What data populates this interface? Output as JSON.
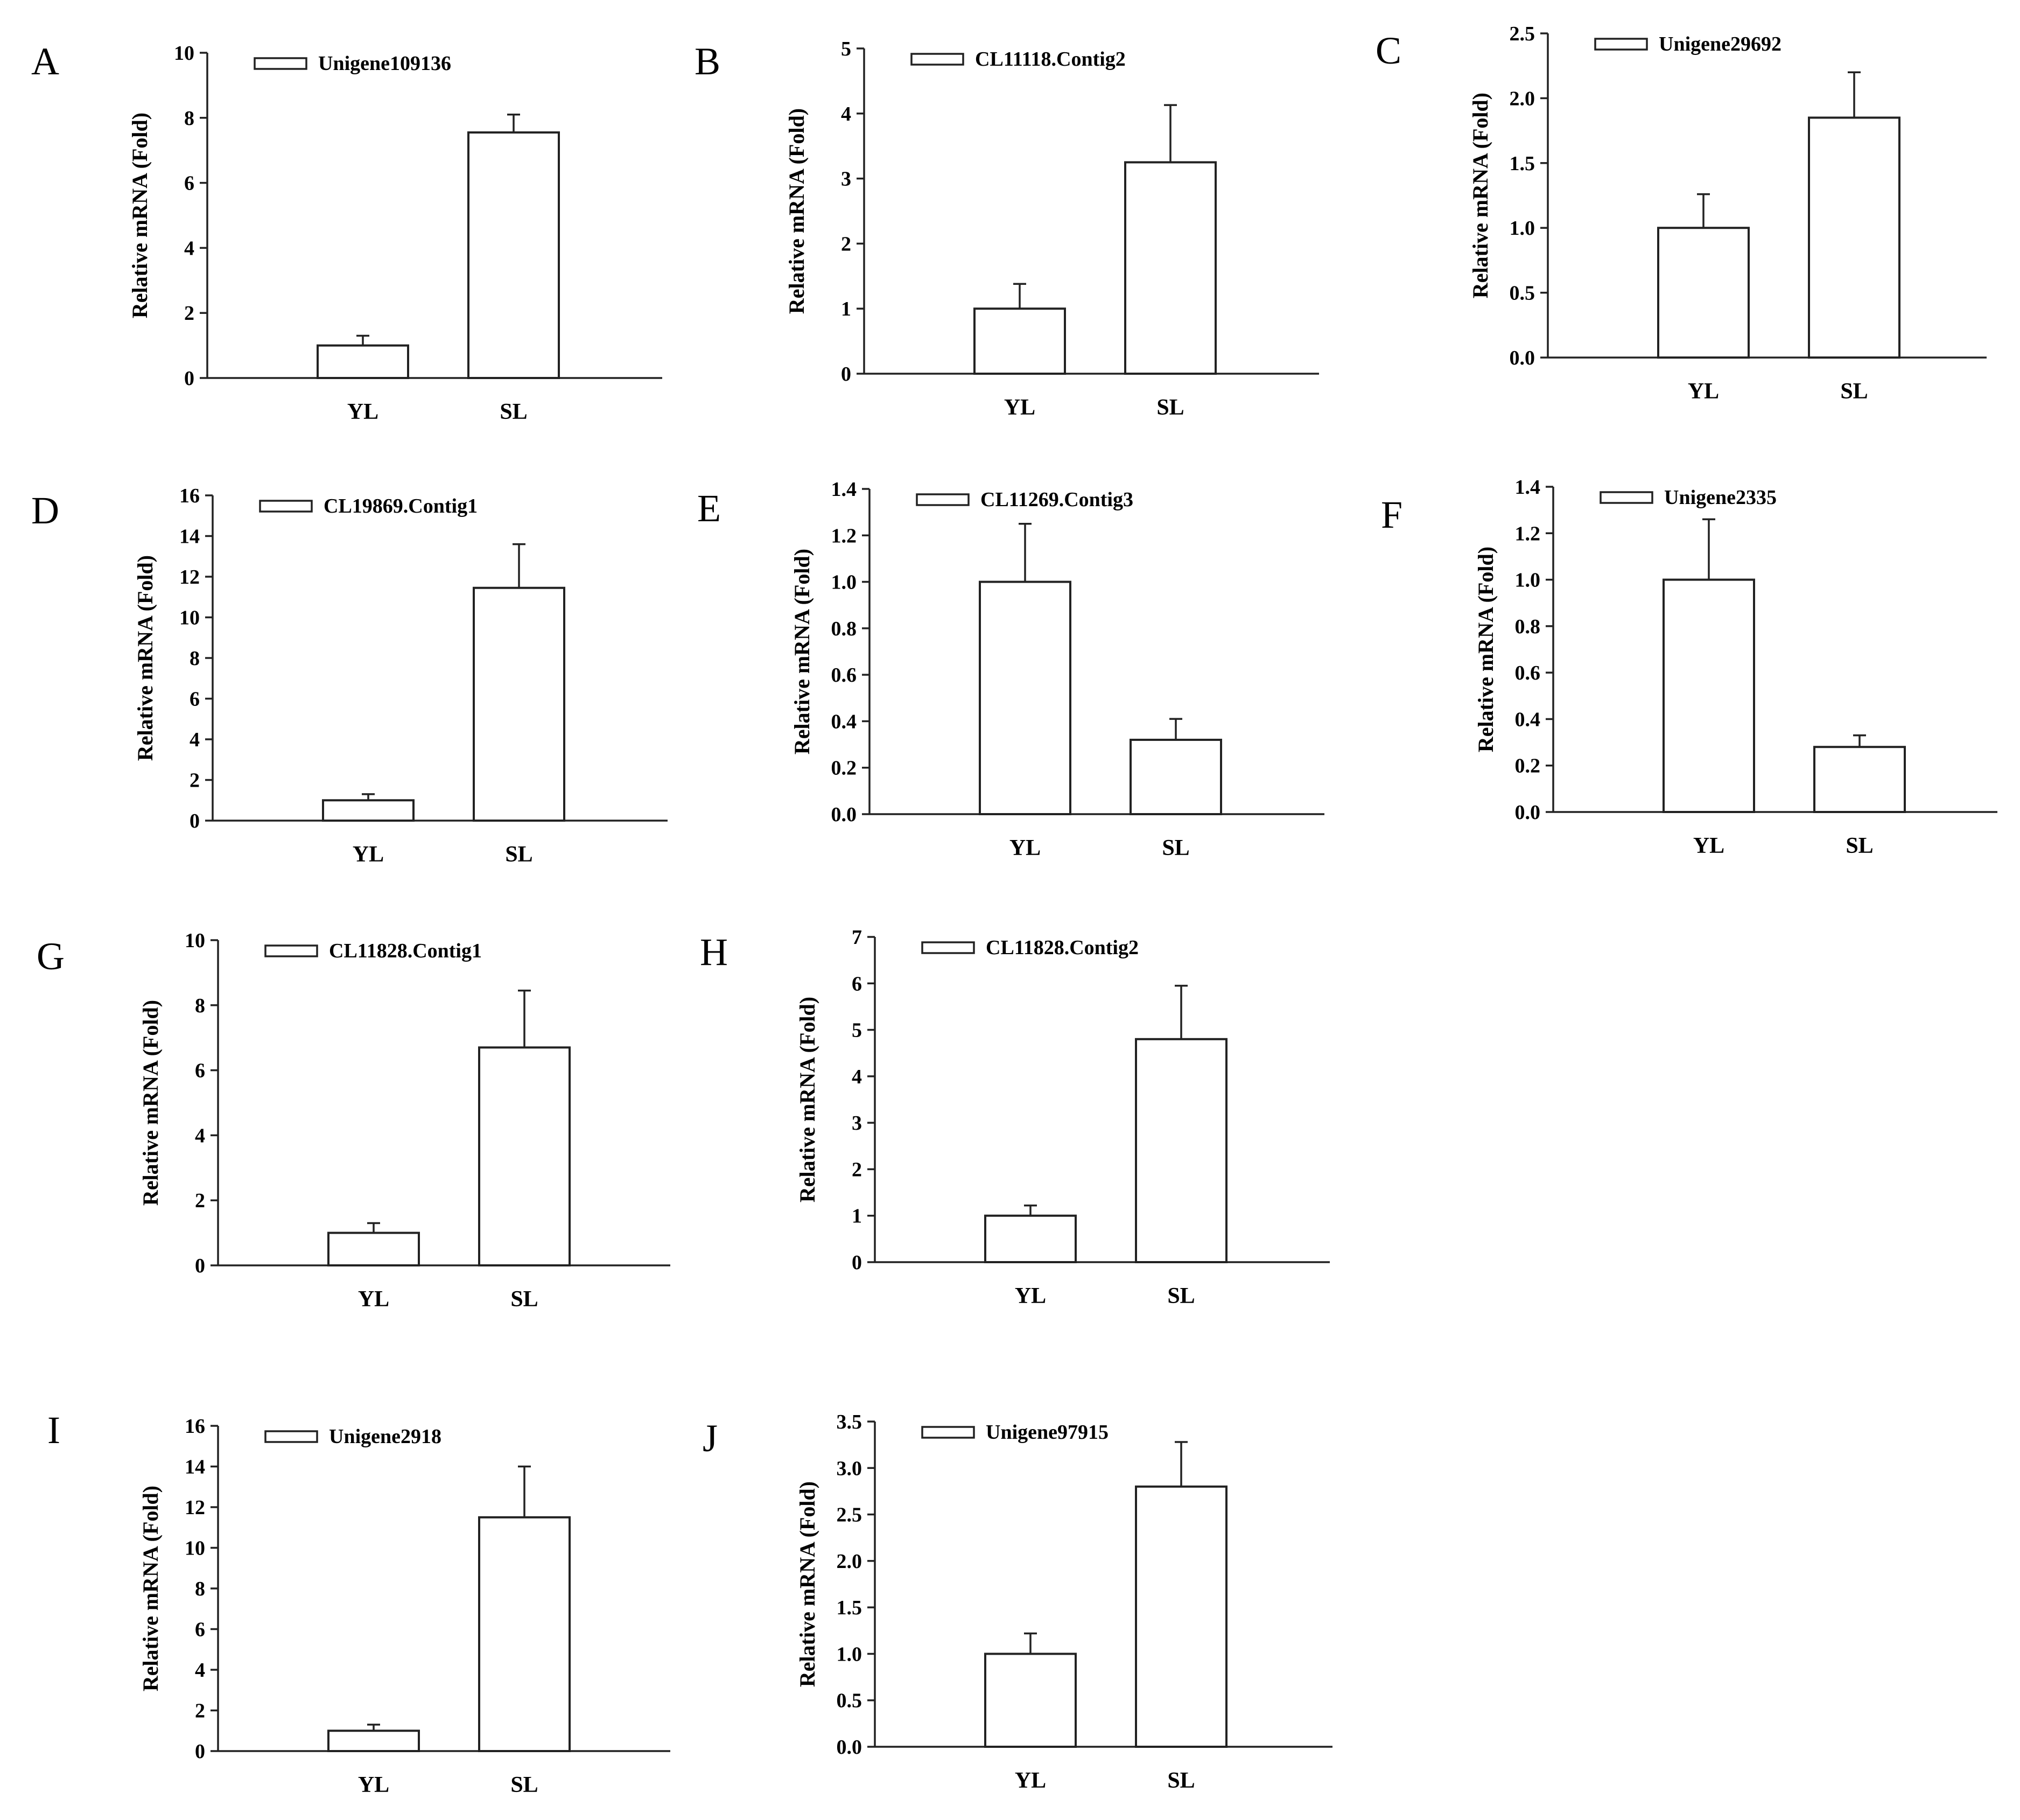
{
  "figure_description": "",
  "chart_data": [
    {
      "panel": "A",
      "type": "bar",
      "title": "",
      "legend": "Unigene109136",
      "ylabel": "Relative mRNA (Fold)",
      "xlabel": "",
      "categories": [
        "YL",
        "SL"
      ],
      "values": [
        1.0,
        7.55
      ],
      "errors": [
        0.3,
        0.55
      ],
      "ylim": [
        0,
        10
      ],
      "yticks": [
        "0",
        "2",
        "4",
        "6",
        "8",
        "10"
      ],
      "legend_position": "top-left",
      "grid": false
    },
    {
      "panel": "B",
      "type": "bar",
      "title": "",
      "legend": "CL11118.Contig2",
      "ylabel": "Relative mRNA (Fold)",
      "xlabel": "",
      "categories": [
        "YL",
        "SL"
      ],
      "values": [
        1.0,
        3.25
      ],
      "errors": [
        0.38,
        0.88
      ],
      "ylim": [
        0,
        5
      ],
      "yticks": [
        "0",
        "1",
        "2",
        "3",
        "4",
        "5"
      ],
      "legend_position": "top-left",
      "grid": false
    },
    {
      "panel": "C",
      "type": "bar",
      "title": "",
      "legend": "Unigene29692",
      "ylabel": "Relative mRNA (Fold)",
      "xlabel": "",
      "categories": [
        "YL",
        "SL"
      ],
      "values": [
        1.0,
        1.85
      ],
      "errors": [
        0.26,
        0.35
      ],
      "ylim": [
        0,
        2.5
      ],
      "yticks": [
        "0.0",
        "0.5",
        "1.0",
        "1.5",
        "2.0",
        "2.5"
      ],
      "legend_position": "top-left",
      "grid": false
    },
    {
      "panel": "D",
      "type": "bar",
      "title": "",
      "legend": "CL19869.Contig1",
      "ylabel": "Relative mRNA (Fold)",
      "xlabel": "",
      "categories": [
        "YL",
        "SL"
      ],
      "values": [
        1.0,
        11.45
      ],
      "errors": [
        0.3,
        2.15
      ],
      "ylim": [
        0,
        16
      ],
      "yticks": [
        "0",
        "2",
        "4",
        "6",
        "8",
        "10",
        "12",
        "14",
        "16"
      ],
      "legend_position": "top-left",
      "grid": false
    },
    {
      "panel": "E",
      "type": "bar",
      "title": "",
      "legend": "CL11269.Contig3",
      "ylabel": "Relative mRNA (Fold)",
      "xlabel": "",
      "categories": [
        "YL",
        "SL"
      ],
      "values": [
        1.0,
        0.32
      ],
      "errors": [
        0.25,
        0.09
      ],
      "ylim": [
        0,
        1.4
      ],
      "yticks": [
        "0.0",
        "0.2",
        "0.4",
        "0.6",
        "0.8",
        "1.0",
        "1.2",
        "1.4"
      ],
      "legend_position": "top-left",
      "grid": false
    },
    {
      "panel": "F",
      "type": "bar",
      "title": "",
      "legend": "Unigene2335",
      "ylabel": "Relative mRNA (Fold)",
      "xlabel": "",
      "categories": [
        "YL",
        "SL"
      ],
      "values": [
        1.0,
        0.28
      ],
      "errors": [
        0.26,
        0.05
      ],
      "ylim": [
        0,
        1.4
      ],
      "yticks": [
        "0.0",
        "0.2",
        "0.4",
        "0.6",
        "0.8",
        "1.0",
        "1.2",
        "1.4"
      ],
      "legend_position": "top-left",
      "grid": false
    },
    {
      "panel": "G",
      "type": "bar",
      "title": "",
      "legend": "CL11828.Contig1",
      "ylabel": "Relative mRNA (Fold)",
      "xlabel": "",
      "categories": [
        "YL",
        "SL"
      ],
      "values": [
        1.0,
        6.7
      ],
      "errors": [
        0.3,
        1.75
      ],
      "ylim": [
        0,
        10
      ],
      "yticks": [
        "0",
        "2",
        "4",
        "6",
        "8",
        "10"
      ],
      "legend_position": "top-left",
      "grid": false
    },
    {
      "panel": "H",
      "type": "bar",
      "title": "",
      "legend": "CL11828.Contig2",
      "ylabel": "Relative mRNA (Fold)",
      "xlabel": "",
      "categories": [
        "YL",
        "SL"
      ],
      "values": [
        1.0,
        4.8
      ],
      "errors": [
        0.22,
        1.15
      ],
      "ylim": [
        0,
        7
      ],
      "yticks": [
        "0",
        "1",
        "2",
        "3",
        "4",
        "5",
        "6",
        "7"
      ],
      "legend_position": "top-left",
      "grid": false
    },
    {
      "panel": "I",
      "type": "bar",
      "title": "",
      "legend": "Unigene2918",
      "ylabel": "Relative mRNA (Fold)",
      "xlabel": "",
      "categories": [
        "YL",
        "SL"
      ],
      "values": [
        1.0,
        11.5
      ],
      "errors": [
        0.3,
        2.5
      ],
      "ylim": [
        0,
        16
      ],
      "yticks": [
        "0",
        "2",
        "4",
        "6",
        "8",
        "10",
        "12",
        "14",
        "16"
      ],
      "legend_position": "top-left",
      "grid": false
    },
    {
      "panel": "J",
      "type": "bar",
      "title": "",
      "legend": "Unigene97915",
      "ylabel": "Relative mRNA (Fold)",
      "xlabel": "",
      "categories": [
        "YL",
        "SL"
      ],
      "values": [
        1.0,
        2.8
      ],
      "errors": [
        0.22,
        0.48
      ],
      "ylim": [
        0,
        3.5
      ],
      "yticks": [
        "0.0",
        "0.5",
        "1.0",
        "1.5",
        "2.0",
        "2.5",
        "3.0",
        "3.5"
      ],
      "legend_position": "top-left",
      "grid": false
    }
  ]
}
